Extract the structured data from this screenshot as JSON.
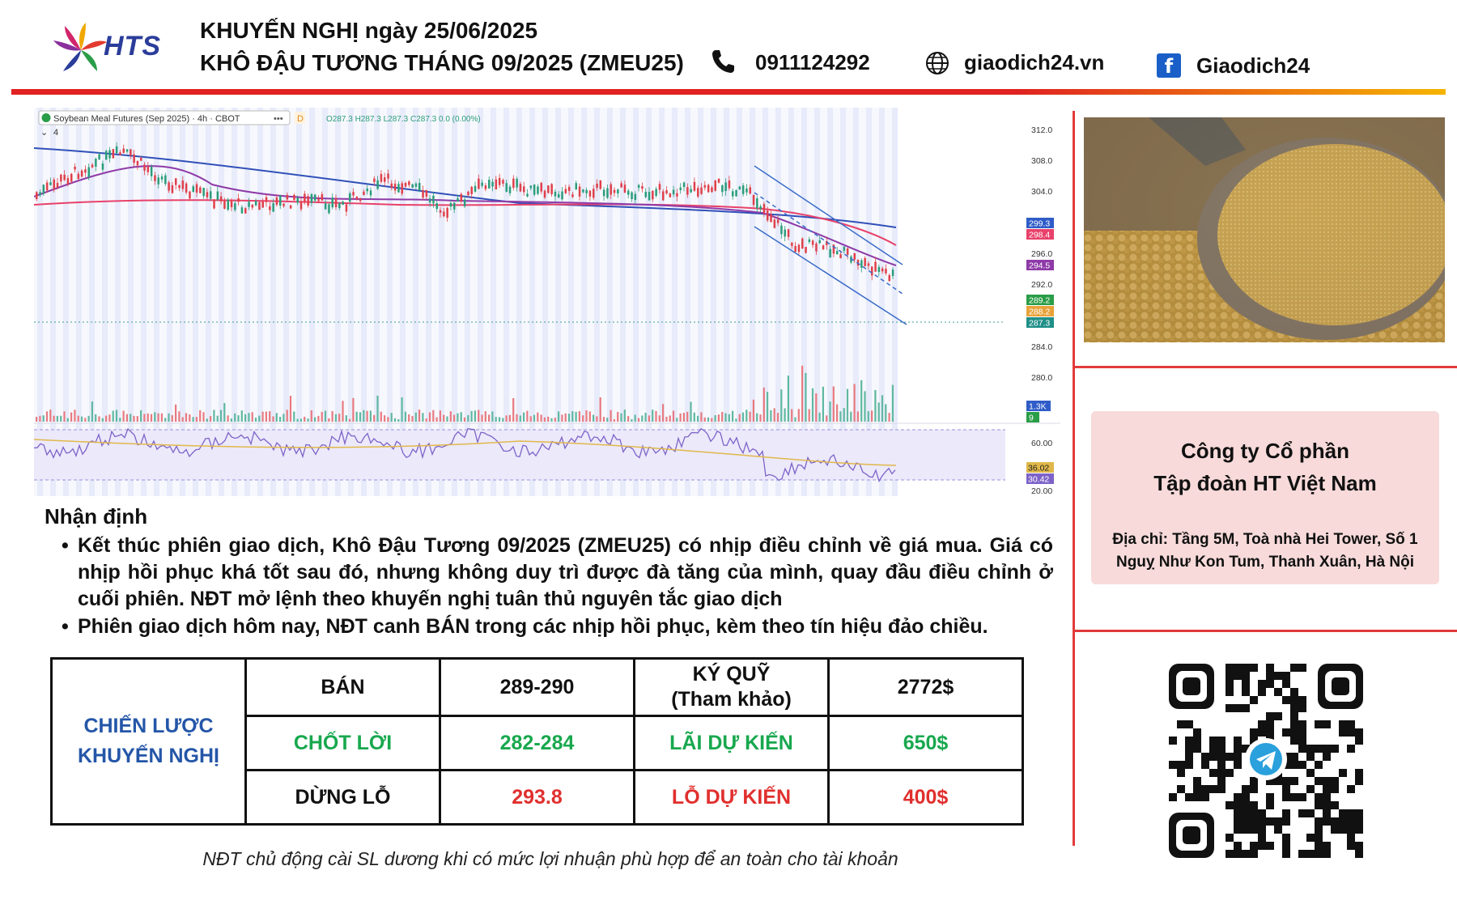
{
  "header": {
    "brand": "HTS",
    "title_line1": "KHUYẾN NGHỊ ngày 25/06/2025",
    "title_line2": "KHÔ ĐẬU TƯƠNG THÁNG 09/2025 (ZMEU25)",
    "phone": "0911124292",
    "website": "giaodich24.vn",
    "facebook": "Giaodich24",
    "icons": [
      "phone-icon",
      "globe-icon",
      "facebook-icon"
    ],
    "accent_colors": [
      "#e02222",
      "#f5b400"
    ]
  },
  "chart": {
    "symbol_label": "Soybean Meal Futures (Sep 2025) · 4h · CBOT",
    "indicator_count": "4",
    "ohlc": "O287.3 H287.3 L287.3 C287.3 0.0 (0.00%)",
    "price_ticks": [
      "312.0",
      "308.0",
      "304.0",
      "296.0",
      "292.0",
      "284.0",
      "280.0"
    ],
    "price_badges": [
      "299.3",
      "298.4",
      "294.5",
      "289.2",
      "288.2",
      "287.3"
    ],
    "volume_badges": [
      "1.3K",
      "9"
    ],
    "rsi_ticks": [
      "60.00",
      "20.00"
    ],
    "rsi_badges": [
      "36.02",
      "30.42"
    ],
    "close_price": 287.3
  },
  "analysis": {
    "heading": "Nhận định",
    "bullets": [
      "Kết thúc phiên giao dịch, Khô Đậu Tương 09/2025 (ZMEU25) có nhịp điều chỉnh về giá mua. Giá có nhịp hồi phục khá tốt sau đó, nhưng không duy trì được đà tăng của mình, quay đầu điều chỉnh ở cuối phiên. NĐT mở lệnh theo khuyến nghị tuân thủ nguyên tắc giao dịch",
      "Phiên giao dịch hôm nay, NĐT canh BÁN trong các nhịp hồi phục, kèm theo tín hiệu đảo chiều."
    ]
  },
  "strategy": {
    "title_line1": "CHIẾN LƯỢC",
    "title_line2": "KHUYẾN NGHỊ",
    "rows": [
      {
        "label": "BÁN",
        "value": "289-290",
        "label2_line1": "KÝ QUỸ",
        "label2_line2": "(Tham khảo)",
        "value2": "2772$"
      },
      {
        "label": "CHỐT LỜI",
        "value": "282-284",
        "label2_line1": "LÃI DỰ KIẾN",
        "label2_line2": "",
        "value2": "650$"
      },
      {
        "label": "DỪNG LỖ",
        "value": "293.8",
        "label2_line1": "LỖ DỰ KIẾN",
        "label2_line2": "",
        "value2": "400$"
      }
    ]
  },
  "footnote": "NĐT chủ động cài SL dương khi có mức lợi nhuận phù hợp để an toàn cho tài khoản",
  "company": {
    "name_line1": "Công ty Cổ phần",
    "name_line2": "Tập đoàn HT Việt Nam",
    "address": "Địa chỉ: Tầng 5M, Toà nhà Hei Tower, Số 1 Nguỵ Như Kon Tum, Thanh Xuân, Hà Nội"
  }
}
